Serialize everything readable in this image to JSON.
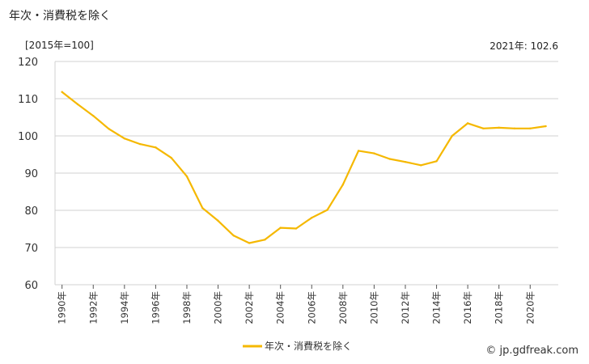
{
  "title": "年次・消費税を除く",
  "unit_label": "[2015年=100]",
  "latest_label": "2021年: 102.6",
  "credit": "© jp.gdfreak.com",
  "colors": {
    "line": "#f5b800",
    "grid": "#d0d0d0",
    "axis": "#555555"
  },
  "chart_data": {
    "type": "line",
    "title": "年次・消費税を除く",
    "ylim": [
      60,
      120
    ],
    "yticks": [
      60,
      70,
      80,
      90,
      100,
      110,
      120
    ],
    "x": [
      1990,
      1991,
      1992,
      1993,
      1994,
      1995,
      1996,
      1997,
      1998,
      1999,
      2000,
      2001,
      2002,
      2003,
      2004,
      2005,
      2006,
      2007,
      2008,
      2009,
      2010,
      2011,
      2012,
      2013,
      2014,
      2015,
      2016,
      2017,
      2018,
      2019,
      2020,
      2021
    ],
    "xtick_labels": [
      "1990年",
      "1992年",
      "1994年",
      "1996年",
      "1998年",
      "2000年",
      "2002年",
      "2004年",
      "2006年",
      "2008年",
      "2010年",
      "2012年",
      "2014年",
      "2016年",
      "2018年",
      "2020年"
    ],
    "series": [
      {
        "name": "年次・消費税を除く",
        "values": [
          111.8,
          108.5,
          105.4,
          101.9,
          99.3,
          97.8,
          96.9,
          94.1,
          89.1,
          80.6,
          77.2,
          73.2,
          71.2,
          72.1,
          75.3,
          75.1,
          78.0,
          80.1,
          86.9,
          96.0,
          95.3,
          93.8,
          93.0,
          92.1,
          93.2,
          100.0,
          103.4,
          102.0,
          102.2,
          102.0,
          102.0,
          102.6
        ]
      }
    ],
    "legend_position": "bottom-center",
    "grid": true
  }
}
